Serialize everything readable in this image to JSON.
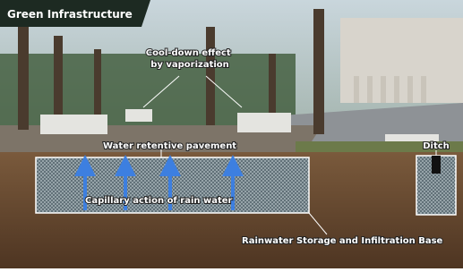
{
  "header": {
    "title": "Green Infrastructure"
  },
  "labels": {
    "cooling": [
      "Cool-down effect",
      "by vaporization"
    ],
    "pavement": "Water retentive pavement",
    "capillary": "Capillary action of rain water",
    "ditch": "Ditch",
    "storage": "Rainwater Storage and Infiltration Base"
  }
}
